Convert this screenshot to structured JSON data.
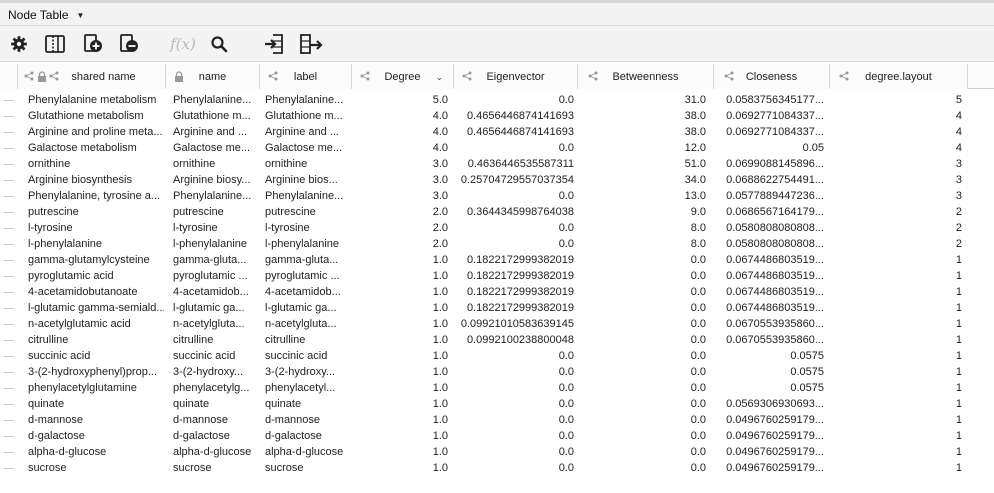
{
  "panel": {
    "title": "Node Table"
  },
  "toolbar": {
    "buttons": [
      {
        "icon": "gear-icon"
      },
      {
        "icon": "columns-icon"
      },
      {
        "icon": "add-table-icon"
      },
      {
        "icon": "remove-table-icon"
      },
      {
        "icon": "function-builder-icon",
        "label": "f(x)"
      },
      {
        "icon": "search-icon"
      },
      {
        "icon": "import-table-icon"
      },
      {
        "icon": "export-table-icon"
      }
    ]
  },
  "columns": [
    "shared name",
    "name",
    "label",
    "Degree",
    "Eigenvector",
    "Betweenness",
    "Closeness",
    "degree.layout"
  ],
  "rows": [
    [
      "Phenylalanine metabolism",
      "Phenylalanine...",
      "Phenylalanine...",
      "5.0",
      "0.0",
      "31.0",
      "0.0583756345177...",
      "5"
    ],
    [
      "Glutathione metabolism",
      "Glutathione m...",
      "Glutathione m...",
      "4.0",
      "0.4656446874141693",
      "38.0",
      "0.0692771084337...",
      "4"
    ],
    [
      "Arginine and proline meta...",
      "Arginine and ...",
      "Arginine and ...",
      "4.0",
      "0.4656446874141693",
      "38.0",
      "0.0692771084337...",
      "4"
    ],
    [
      "Galactose metabolism",
      "Galactose me...",
      "Galactose me...",
      "4.0",
      "0.0",
      "12.0",
      "0.05",
      "4"
    ],
    [
      "ornithine",
      "ornithine",
      "ornithine",
      "3.0",
      "0.4636446535587311",
      "51.0",
      "0.0699088145896...",
      "3"
    ],
    [
      "Arginine biosynthesis",
      "Arginine biosy...",
      "Arginine bios...",
      "3.0",
      "0.25704729557037354",
      "34.0",
      "0.0688622754491...",
      "3"
    ],
    [
      "Phenylalanine, tyrosine a...",
      "Phenylalanine...",
      "Phenylalanine...",
      "3.0",
      "0.0",
      "13.0",
      "0.0577889447236...",
      "3"
    ],
    [
      "putrescine",
      "putrescine",
      "putrescine",
      "2.0",
      "0.3644345998764038",
      "9.0",
      "0.0686567164179...",
      "2"
    ],
    [
      "l-tyrosine",
      "l-tyrosine",
      "l-tyrosine",
      "2.0",
      "0.0",
      "8.0",
      "0.0580808080808...",
      "2"
    ],
    [
      "l-phenylalanine",
      "l-phenylalanine",
      "l-phenylalanine",
      "2.0",
      "0.0",
      "8.0",
      "0.0580808080808...",
      "2"
    ],
    [
      "gamma-glutamylcysteine",
      "gamma-gluta...",
      "gamma-gluta...",
      "1.0",
      "0.1822172999382019",
      "0.0",
      "0.0674486803519...",
      "1"
    ],
    [
      "pyroglutamic acid",
      "pyroglutamic ...",
      "pyroglutamic ...",
      "1.0",
      "0.1822172999382019",
      "0.0",
      "0.0674486803519...",
      "1"
    ],
    [
      "4-acetamidobutanoate",
      "4-acetamidob...",
      "4-acetamidob...",
      "1.0",
      "0.1822172999382019",
      "0.0",
      "0.0674486803519...",
      "1"
    ],
    [
      "l-glutamic gamma-semiald...",
      "l-glutamic ga...",
      "l-glutamic ga...",
      "1.0",
      "0.1822172999382019",
      "0.0",
      "0.0674486803519...",
      "1"
    ],
    [
      "n-acetylglutamic acid",
      "n-acetylgluta...",
      "n-acetylgluta...",
      "1.0",
      "0.09921010583639145",
      "0.0",
      "0.0670553935860...",
      "1"
    ],
    [
      "citrulline",
      "citrulline",
      "citrulline",
      "1.0",
      "0.0992100238800048",
      "0.0",
      "0.0670553935860...",
      "1"
    ],
    [
      "succinic acid",
      "succinic acid",
      "succinic acid",
      "1.0",
      "0.0",
      "0.0",
      "0.0575",
      "1"
    ],
    [
      "3-(2-hydroxyphenyl)prop...",
      "3-(2-hydroxy...",
      "3-(2-hydroxy...",
      "1.0",
      "0.0",
      "0.0",
      "0.0575",
      "1"
    ],
    [
      "phenylacetylglutamine",
      "phenylacetylg...",
      "phenylacetyl...",
      "1.0",
      "0.0",
      "0.0",
      "0.0575",
      "1"
    ],
    [
      "quinate",
      "quinate",
      "quinate",
      "1.0",
      "0.0",
      "0.0",
      "0.0569306930693...",
      "1"
    ],
    [
      "d-mannose",
      "d-mannose",
      "d-mannose",
      "1.0",
      "0.0",
      "0.0",
      "0.0496760259179...",
      "1"
    ],
    [
      "d-galactose",
      "d-galactose",
      "d-galactose",
      "1.0",
      "0.0",
      "0.0",
      "0.0496760259179...",
      "1"
    ],
    [
      "alpha-d-glucose",
      "alpha-d-glucose",
      "alpha-d-glucose",
      "1.0",
      "0.0",
      "0.0",
      "0.0496760259179...",
      "1"
    ],
    [
      "sucrose",
      "sucrose",
      "sucrose",
      "1.0",
      "0.0",
      "0.0",
      "0.0496760259179...",
      "1"
    ]
  ]
}
